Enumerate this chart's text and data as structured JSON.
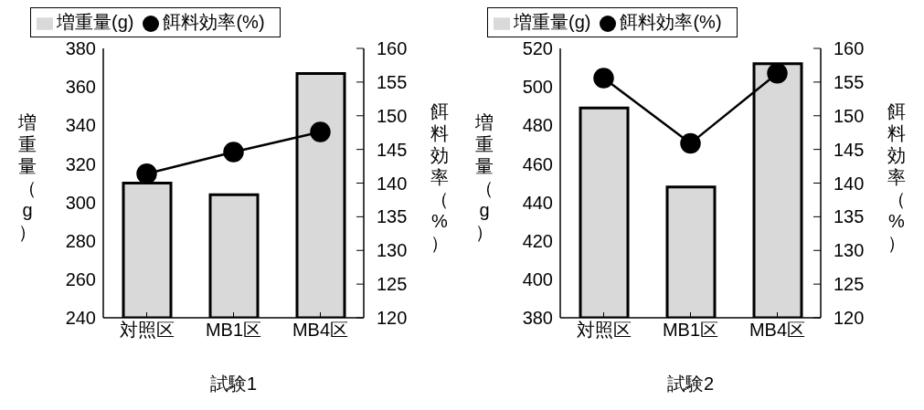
{
  "chart_data": [
    {
      "type": "bar",
      "title": "試験1",
      "ylabel": "増重量（g）",
      "y2label": "餌料効率（%）",
      "categories": [
        "対照区",
        "MB1区",
        "MB4区"
      ],
      "series": [
        {
          "name": "増重量(g)",
          "color": "#d9d9d9",
          "values": [
            310,
            304,
            367
          ]
        },
        {
          "name": "餌料効率(%)",
          "type": "line",
          "axis": "y2",
          "color": "#000000",
          "values": [
            141.4,
            144.6,
            147.6
          ]
        }
      ],
      "ylim": [
        240,
        380
      ],
      "yticks": [
        240,
        260,
        280,
        300,
        320,
        340,
        360,
        380
      ],
      "y2lim": [
        120,
        160
      ],
      "y2ticks": [
        120,
        125,
        130,
        135,
        140,
        145,
        150,
        155,
        160
      ],
      "legend": "top",
      "marker": "circle",
      "grid": false
    },
    {
      "type": "bar",
      "title": "試験2",
      "ylabel": "増重量（g）",
      "y2label": "餌料効率（%）",
      "categories": [
        "対照区",
        "MB1区",
        "MB4区"
      ],
      "series": [
        {
          "name": "増重量(g)",
          "color": "#d9d9d9",
          "values": [
            489,
            448,
            512
          ]
        },
        {
          "name": "餌料効率(%)",
          "type": "line",
          "axis": "y2",
          "color": "#000000",
          "values": [
            155.6,
            145.9,
            156.3
          ]
        }
      ],
      "ylim": [
        380,
        520
      ],
      "yticks": [
        380,
        400,
        420,
        440,
        460,
        480,
        500,
        520
      ],
      "y2lim": [
        120,
        160
      ],
      "y2ticks": [
        120,
        125,
        130,
        135,
        140,
        145,
        150,
        155,
        160
      ],
      "legend": "top",
      "marker": "circle",
      "grid": false
    }
  ]
}
